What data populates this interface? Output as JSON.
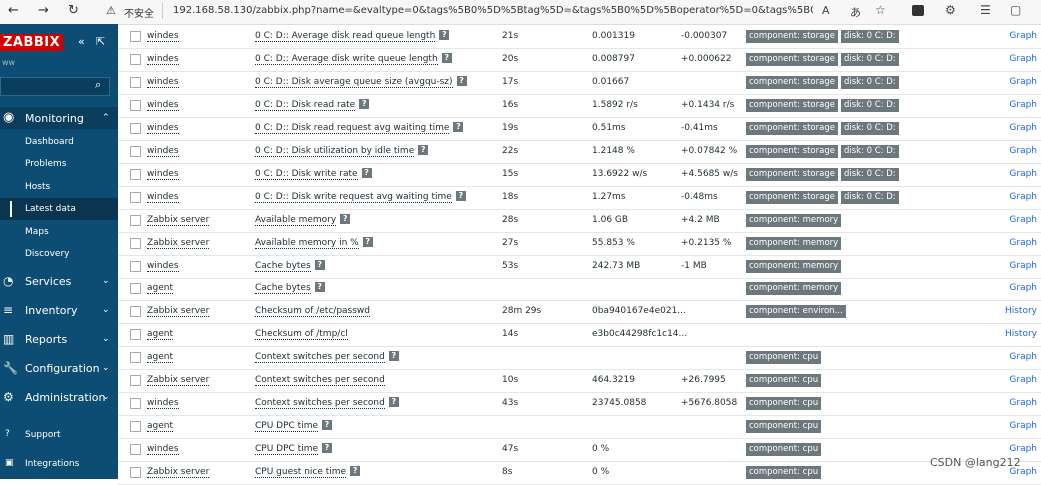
{
  "browser": {
    "warning": "不安全",
    "url": "192.168.58.130/zabbix.php?name=&evaltype=0&tags%5B0%5D%5Btag%5D=&tags%5B0%5D%5Boperator%5D=0&tags%5B0%5D%5Bvalue..."
  },
  "sidebar": {
    "logo": "ZABBIX",
    "user": "ww",
    "monitoring": {
      "label": "Monitoring",
      "items": [
        "Dashboard",
        "Problems",
        "Hosts",
        "Latest data",
        "Maps",
        "Discovery"
      ],
      "selected": 3
    },
    "sections": [
      "Services",
      "Inventory",
      "Reports",
      "Configuration",
      "Administration"
    ],
    "footer": [
      "Support",
      "Integrations"
    ]
  },
  "table": {
    "rows": [
      {
        "host": "windes",
        "name": "0 C: D:: Average disk read queue length",
        "help": true,
        "last_check": "21s",
        "last_value": "0.001319",
        "change": "-0.000307",
        "tags": [
          "component: storage",
          "disk: 0 C: D:"
        ],
        "action": "Graph"
      },
      {
        "host": "windes",
        "name": "0 C: D:: Average disk write queue length",
        "help": true,
        "last_check": "20s",
        "last_value": "0.008797",
        "change": "+0.000622",
        "tags": [
          "component: storage",
          "disk: 0 C: D:"
        ],
        "action": "Graph"
      },
      {
        "host": "windes",
        "name": "0 C: D:: Disk average queue size (avgqu-sz)",
        "help": true,
        "last_check": "17s",
        "last_value": "0.01667",
        "change": null,
        "tags": [
          "component: storage",
          "disk: 0 C: D:"
        ],
        "action": "Graph"
      },
      {
        "host": "windes",
        "name": "0 C: D:: Disk read rate",
        "help": true,
        "last_check": "16s",
        "last_value": "1.5892 r/s",
        "change": "+0.1434 r/s",
        "tags": [
          "component: storage",
          "disk: 0 C: D:"
        ],
        "action": "Graph"
      },
      {
        "host": "windes",
        "name": "0 C: D:: Disk read request avg waiting time",
        "help": true,
        "last_check": "19s",
        "last_value": "0.51ms",
        "change": "-0.41ms",
        "tags": [
          "component: storage",
          "disk: 0 C: D:"
        ],
        "action": "Graph"
      },
      {
        "host": "windes",
        "name": "0 C: D:: Disk utilization by idle time",
        "help": true,
        "last_check": "22s",
        "last_value": "1.2148 %",
        "change": "+0.07842 %",
        "tags": [
          "component: storage",
          "disk: 0 C: D:"
        ],
        "action": "Graph"
      },
      {
        "host": "windes",
        "name": "0 C: D:: Disk write rate",
        "help": true,
        "last_check": "15s",
        "last_value": "13.6922 w/s",
        "change": "+4.5685 w/s",
        "tags": [
          "component: storage",
          "disk: 0 C: D:"
        ],
        "action": "Graph"
      },
      {
        "host": "windes",
        "name": "0 C: D:: Disk write request avg waiting time",
        "help": true,
        "last_check": "18s",
        "last_value": "1.27ms",
        "change": "-0.48ms",
        "tags": [
          "component: storage",
          "disk: 0 C: D:"
        ],
        "action": "Graph"
      },
      {
        "host": "Zabbix server",
        "name": "Available memory",
        "help": true,
        "last_check": "28s",
        "last_value": "1.06 GB",
        "change": "+4.2 MB",
        "tags": [
          "component: memory"
        ],
        "action": "Graph"
      },
      {
        "host": "Zabbix server",
        "name": "Available memory in %",
        "help": true,
        "last_check": "27s",
        "last_value": "55.853 %",
        "change": "+0.2135 %",
        "tags": [
          "component: memory"
        ],
        "action": "Graph"
      },
      {
        "host": "windes",
        "name": "Cache bytes",
        "help": true,
        "last_check": "53s",
        "last_value": "242.73 MB",
        "change": "-1 MB",
        "tags": [
          "component: memory"
        ],
        "action": "Graph"
      },
      {
        "host": "agent",
        "name": "Cache bytes",
        "help": true,
        "last_check": null,
        "last_value": null,
        "change": null,
        "tags": [
          "component: memory"
        ],
        "action": "Graph"
      },
      {
        "host": "Zabbix server",
        "name": "Checksum of /etc/passwd",
        "help": false,
        "last_check": "28m 29s",
        "last_value": "0ba940167e4e021...",
        "change": null,
        "tags": [
          "component: environ..."
        ],
        "action": "History"
      },
      {
        "host": "agent",
        "name": "Checksum of /tmp/cl",
        "help": false,
        "last_check": "14s",
        "last_value": "e3b0c44298fc1c14...",
        "change": null,
        "tags": [],
        "action": "History"
      },
      {
        "host": "agent",
        "name": "Context switches per second",
        "help": true,
        "last_check": null,
        "last_value": null,
        "change": null,
        "tags": [
          "component: cpu"
        ],
        "action": "Graph"
      },
      {
        "host": "Zabbix server",
        "name": "Context switches per second",
        "help": false,
        "last_check": "10s",
        "last_value": "464.3219",
        "change": "+26.7995",
        "tags": [
          "component: cpu"
        ],
        "action": "Graph"
      },
      {
        "host": "windes",
        "name": "Context switches per second",
        "help": true,
        "last_check": "43s",
        "last_value": "23745.0858",
        "change": "+5676.8058",
        "tags": [
          "component: cpu"
        ],
        "action": "Graph"
      },
      {
        "host": "agent",
        "name": "CPU DPC time",
        "help": true,
        "last_check": null,
        "last_value": null,
        "change": null,
        "tags": [
          "component: cpu"
        ],
        "action": "Graph"
      },
      {
        "host": "windes",
        "name": "CPU DPC time",
        "help": true,
        "last_check": "47s",
        "last_value": "0 %",
        "change": null,
        "tags": [
          "component: cpu"
        ],
        "action": "Graph"
      },
      {
        "host": "Zabbix server",
        "name": "CPU guest nice time",
        "help": true,
        "last_check": "8s",
        "last_value": "0 %",
        "change": null,
        "tags": [
          "component: cpu"
        ],
        "action": "Graph"
      }
    ]
  },
  "watermark": "CSDN @lang212"
}
